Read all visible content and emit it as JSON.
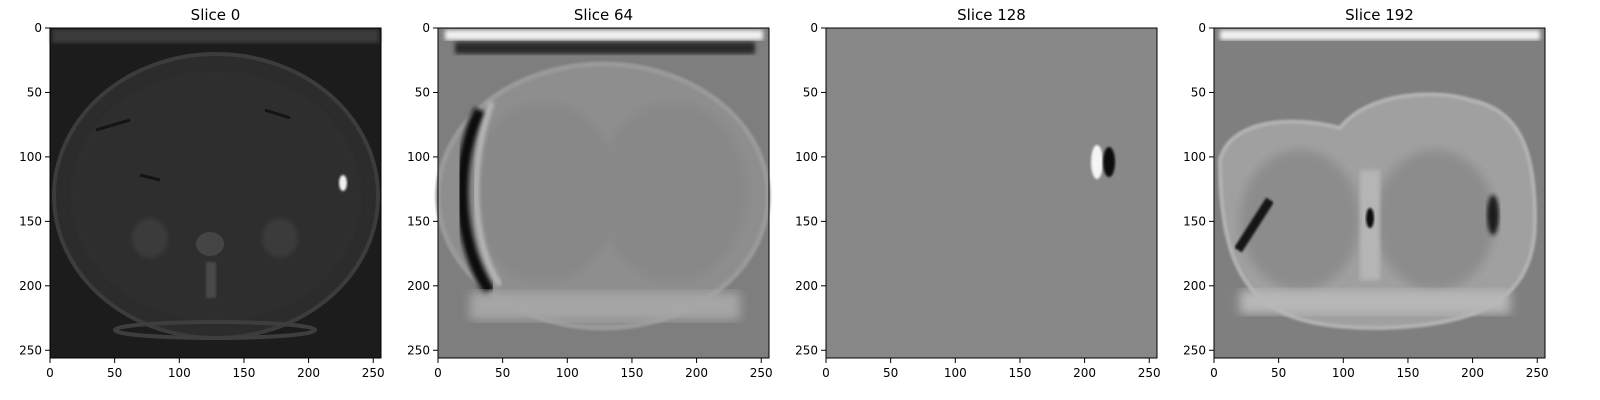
{
  "figure": {
    "panels": [
      {
        "title": "Slice 0"
      },
      {
        "title": "Slice 64"
      },
      {
        "title": "Slice 128"
      },
      {
        "title": "Slice 192"
      }
    ],
    "x_ticks": [
      0,
      50,
      100,
      150,
      200,
      250
    ],
    "y_ticks": [
      0,
      50,
      100,
      150,
      200,
      250
    ],
    "x_range": [
      0,
      256
    ],
    "y_range": [
      0,
      256
    ]
  }
}
